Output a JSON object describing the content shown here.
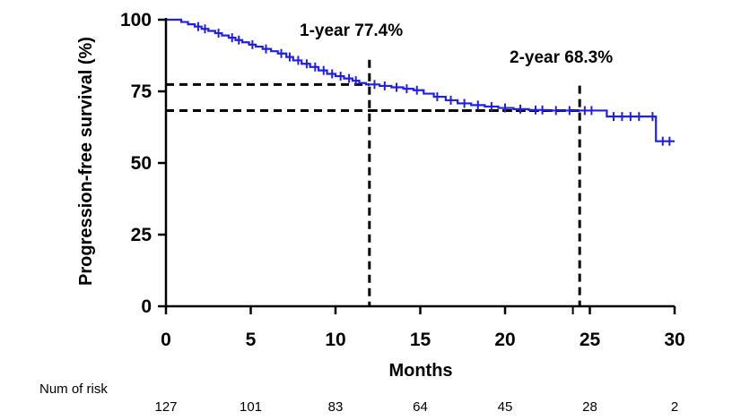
{
  "chart_data": {
    "type": "line",
    "title": "",
    "xlabel": "Months",
    "ylabel": "Progression-free survival (%)",
    "xlim": [
      0,
      30
    ],
    "ylim": [
      0,
      100
    ],
    "x_ticks": [
      "0",
      "5",
      "10",
      "15",
      "20",
      "25",
      "30"
    ],
    "y_ticks": [
      "0",
      "25",
      "50",
      "75",
      "100"
    ],
    "grid": false,
    "line_color": "#1f1fe6",
    "series": [
      {
        "values_type": "step",
        "x": [
          0,
          0.9,
          1.3,
          1.7,
          2.1,
          2.5,
          2.9,
          3.3,
          3.7,
          4.1,
          4.5,
          4.9,
          5.3,
          5.7,
          6.2,
          6.6,
          7.1,
          7.5,
          8.0,
          8.5,
          9.0,
          9.5,
          10.0,
          10.5,
          11.0,
          11.4,
          11.8,
          12.1,
          12.6,
          13.3,
          14.0,
          14.6,
          15.2,
          15.8,
          16.5,
          17.2,
          18.0,
          18.8,
          19.6,
          20.5,
          21.4,
          22.5,
          23.5,
          24.5,
          25.4,
          26.0,
          27.0,
          28.0,
          28.9,
          29.9
        ],
        "y": [
          100,
          99.2,
          98.4,
          97.6,
          96.8,
          96.1,
          95.3,
          94.5,
          93.7,
          92.9,
          92.1,
          91.3,
          90.6,
          89.8,
          89.0,
          88.2,
          87.0,
          85.8,
          84.6,
          83.5,
          82.3,
          81.1,
          80.3,
          79.5,
          78.7,
          77.9,
          77.4,
          77.4,
          76.9,
          76.4,
          75.9,
          75.4,
          74.2,
          73.1,
          71.9,
          70.8,
          70.2,
          69.7,
          69.2,
          68.8,
          68.5,
          68.3,
          68.3,
          68.3,
          68.3,
          66.2,
          66.2,
          66.2,
          57.6,
          57.6
        ]
      }
    ],
    "censor_x": [
      1.9,
      2.3,
      3.1,
      3.9,
      4.3,
      5.1,
      5.9,
      6.8,
      7.3,
      7.8,
      8.3,
      8.8,
      9.3,
      9.8,
      10.3,
      10.8,
      11.2,
      12.3,
      12.9,
      13.6,
      14.2,
      14.8,
      16.0,
      16.8,
      17.6,
      18.4,
      19.2,
      20.0,
      20.9,
      21.8,
      22.2,
      23.0,
      23.8,
      24.7,
      25.1,
      26.4,
      26.9,
      27.4,
      27.9,
      28.7,
      29.3,
      29.7
    ],
    "reference_lines": [
      {
        "x": 12,
        "y": 77.4
      },
      {
        "x": 24,
        "y": 68.3
      }
    ],
    "annotations": [
      {
        "text": "1-year 77.4%",
        "x": 12,
        "y": 100
      },
      {
        "text": "2-year 68.3%",
        "x": 24,
        "y": 87
      }
    ],
    "risk_table": {
      "label": "Num of risk",
      "x": [
        0,
        5,
        10,
        15,
        20,
        25,
        30
      ],
      "values": [
        "127",
        "101",
        "83",
        "64",
        "45",
        "28",
        "2"
      ]
    }
  }
}
